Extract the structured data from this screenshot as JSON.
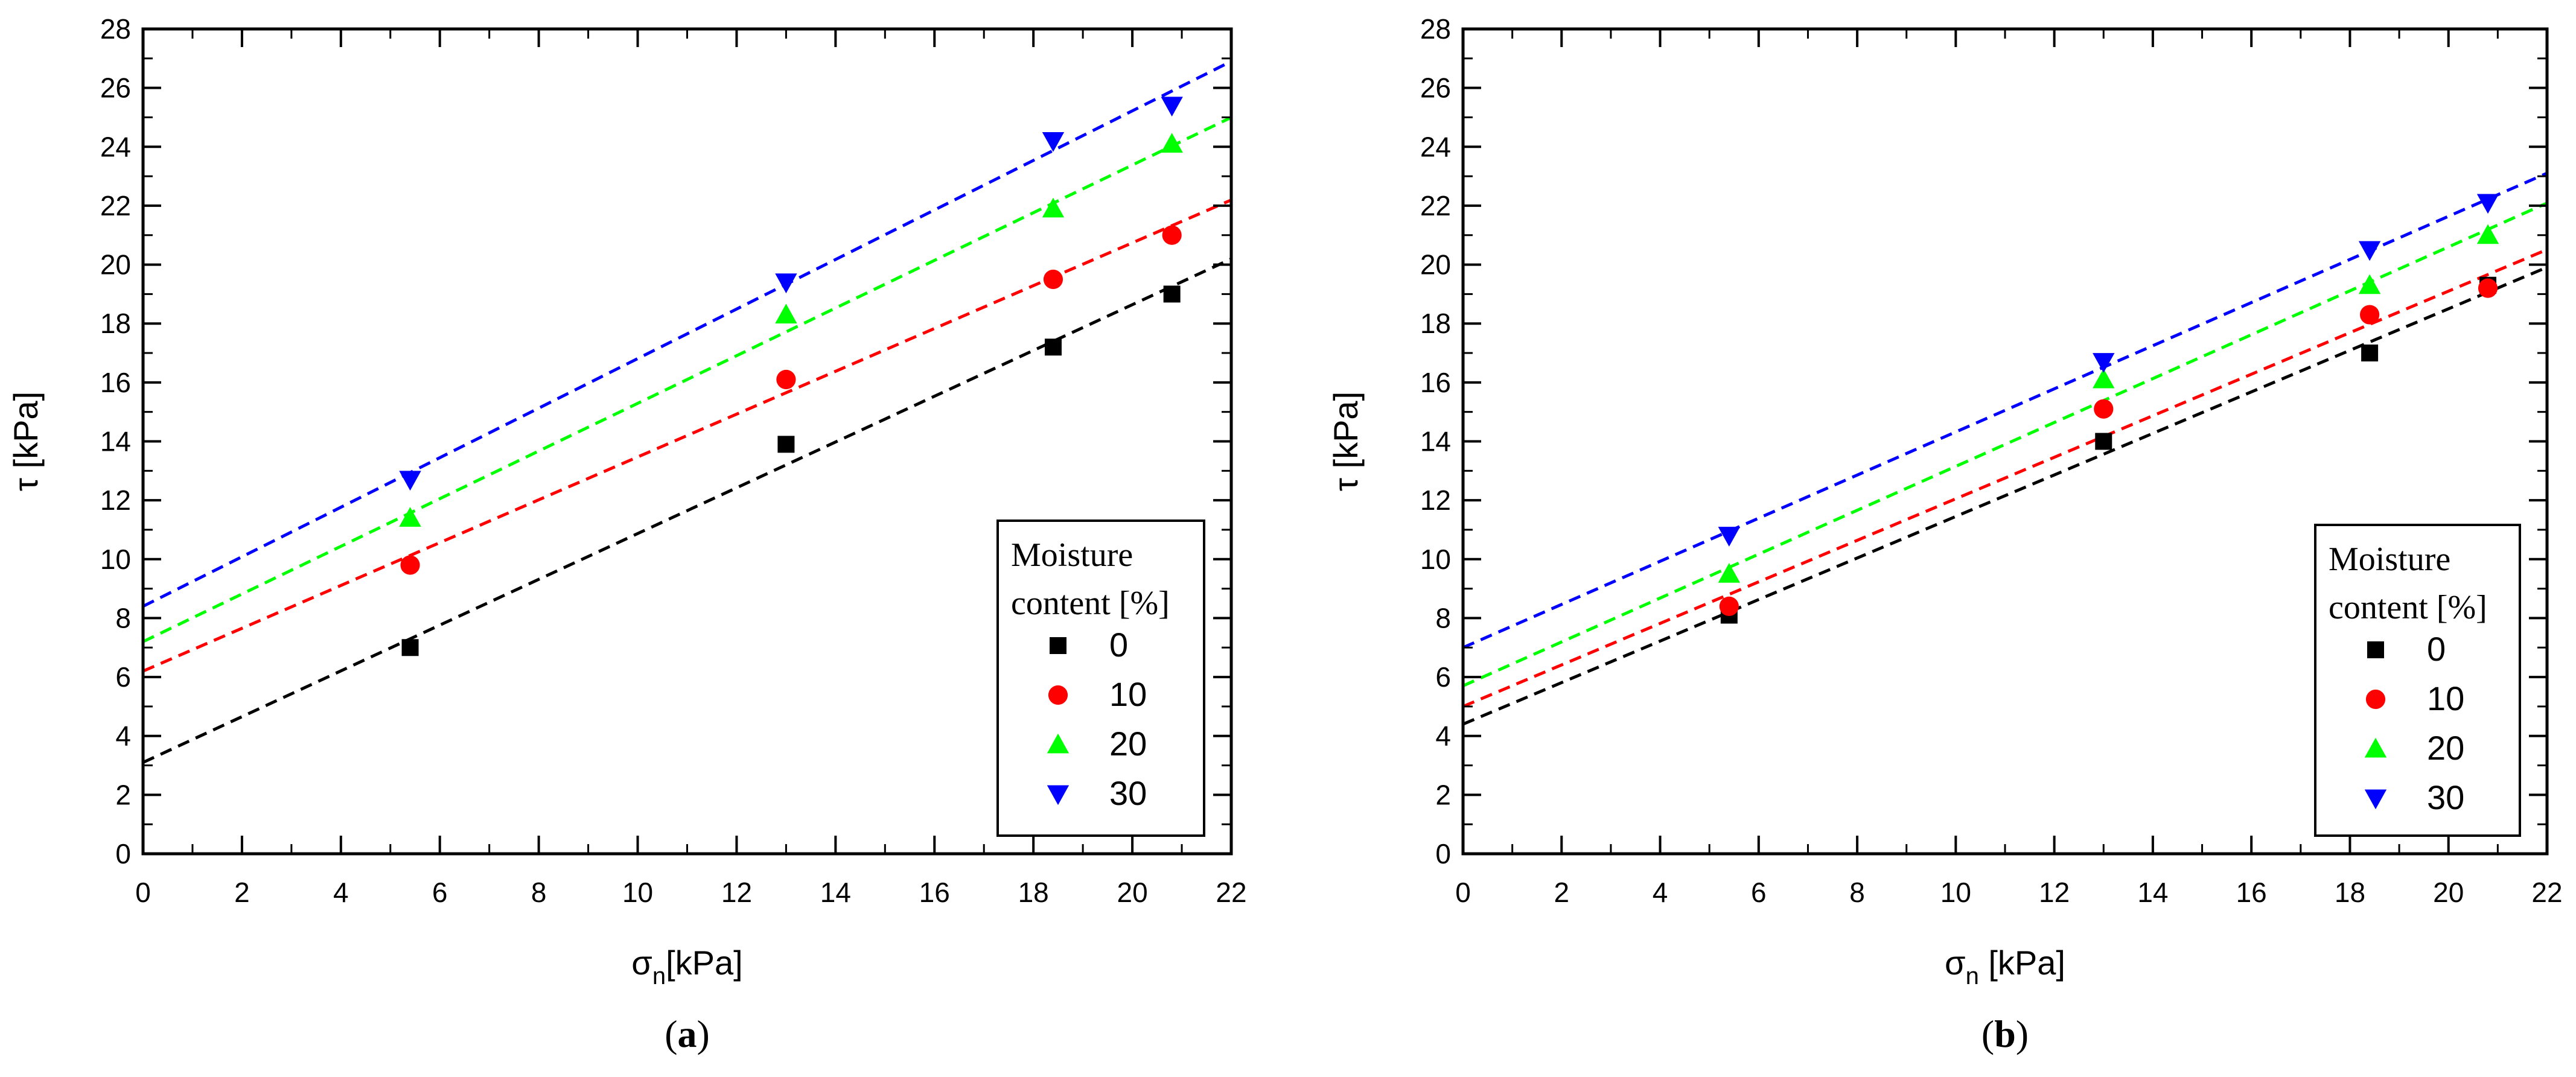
{
  "chart_data": [
    {
      "type": "scatter",
      "panel_label": "a",
      "xlabel": "σ",
      "xlabel_sub": "n",
      "xlabel_unit": "[kPa]",
      "ylabel": "τ [kPa]",
      "xlim": [
        0,
        22
      ],
      "ylim": [
        0,
        28
      ],
      "x_ticks": [
        0,
        2,
        4,
        6,
        8,
        10,
        12,
        14,
        16,
        18,
        20,
        22
      ],
      "y_ticks": [
        0,
        2,
        4,
        6,
        8,
        10,
        12,
        14,
        16,
        18,
        20,
        22,
        24,
        26,
        28
      ],
      "legend": {
        "title": [
          "Moisture",
          "content [%]"
        ],
        "position": "bottom-right"
      },
      "series": [
        {
          "name": "0",
          "marker": "square",
          "color": "#000000",
          "x": [
            5.4,
            13.0,
            18.4,
            20.8
          ],
          "y": [
            7.0,
            13.9,
            17.2,
            19.0
          ],
          "fit": {
            "intercept": 3.1,
            "slope": 0.777
          }
        },
        {
          "name": "10",
          "marker": "circle",
          "color": "#ff0000",
          "x": [
            5.4,
            13.0,
            18.4,
            20.8
          ],
          "y": [
            9.8,
            16.1,
            19.5,
            21.0
          ],
          "fit": {
            "intercept": 6.2,
            "slope": 0.727
          }
        },
        {
          "name": "20",
          "marker": "triangle-up",
          "color": "#00ff00",
          "x": [
            5.4,
            13.0,
            18.4,
            20.8
          ],
          "y": [
            11.4,
            18.3,
            21.9,
            24.1
          ],
          "fit": {
            "intercept": 7.2,
            "slope": 0.809
          }
        },
        {
          "name": "30",
          "marker": "triangle-down",
          "color": "#0000ff",
          "x": [
            5.4,
            13.0,
            18.4,
            20.8
          ],
          "y": [
            12.7,
            19.4,
            24.2,
            25.4
          ],
          "fit": {
            "intercept": 8.4,
            "slope": 0.841
          }
        }
      ]
    },
    {
      "type": "scatter",
      "panel_label": "b",
      "xlabel": "σ",
      "xlabel_sub": "n",
      "xlabel_unit": " [kPa]",
      "ylabel": "τ [kPa]",
      "xlim": [
        0,
        22
      ],
      "ylim": [
        0,
        28
      ],
      "x_ticks": [
        0,
        2,
        4,
        6,
        8,
        10,
        12,
        14,
        16,
        18,
        20,
        22
      ],
      "y_ticks": [
        0,
        2,
        4,
        6,
        8,
        10,
        12,
        14,
        16,
        18,
        20,
        22,
        24,
        26,
        28
      ],
      "legend": {
        "title": [
          "Moisture",
          "content [%]"
        ],
        "position": "bottom-right"
      },
      "series": [
        {
          "name": "0",
          "marker": "square",
          "color": "#000000",
          "x": [
            5.4,
            13.0,
            18.4,
            20.8
          ],
          "y": [
            8.1,
            14.0,
            17.0,
            19.3
          ],
          "fit": {
            "intercept": 4.4,
            "slope": 0.705
          }
        },
        {
          "name": "10",
          "marker": "circle",
          "color": "#ff0000",
          "x": [
            5.4,
            13.0,
            18.4,
            20.8
          ],
          "y": [
            8.4,
            15.1,
            18.3,
            19.2
          ],
          "fit": {
            "intercept": 5.0,
            "slope": 0.705
          }
        },
        {
          "name": "20",
          "marker": "triangle-up",
          "color": "#00ff00",
          "x": [
            5.4,
            13.0,
            18.4,
            20.8
          ],
          "y": [
            9.5,
            16.1,
            19.3,
            21.0
          ],
          "fit": {
            "intercept": 5.7,
            "slope": 0.745
          }
        },
        {
          "name": "30",
          "marker": "triangle-down",
          "color": "#0000ff",
          "x": [
            5.4,
            13.0,
            18.4,
            20.8
          ],
          "y": [
            10.8,
            16.7,
            20.5,
            22.1
          ],
          "fit": {
            "intercept": 7.0,
            "slope": 0.732
          }
        }
      ]
    }
  ]
}
